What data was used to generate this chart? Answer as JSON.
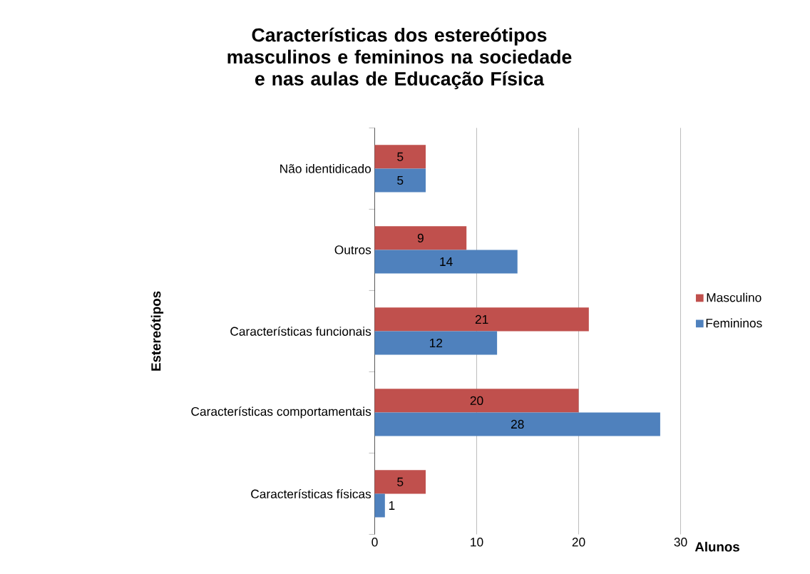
{
  "chart_data": {
    "type": "bar",
    "orientation": "horizontal",
    "title": "Características dos estereótipos masculinos e femininos na sociedade e nas aulas de Educação Física",
    "xlabel": "Alunos",
    "ylabel": "Estereótipos",
    "categories": [
      "Não identidicado",
      "Outros",
      "Características funcionais",
      "Características comportamentais",
      "Características físicas"
    ],
    "series": [
      {
        "name": "Masculino",
        "color": "#c0504d",
        "values": [
          5,
          9,
          21,
          20,
          5
        ]
      },
      {
        "name": "Femininos",
        "color": "#4f81bd",
        "values": [
          5,
          14,
          12,
          28,
          1
        ]
      }
    ],
    "xlim": [
      0,
      30
    ],
    "xticks": [
      0,
      10,
      20,
      30
    ],
    "grid": "x",
    "legend": "right",
    "data_labels": true
  }
}
